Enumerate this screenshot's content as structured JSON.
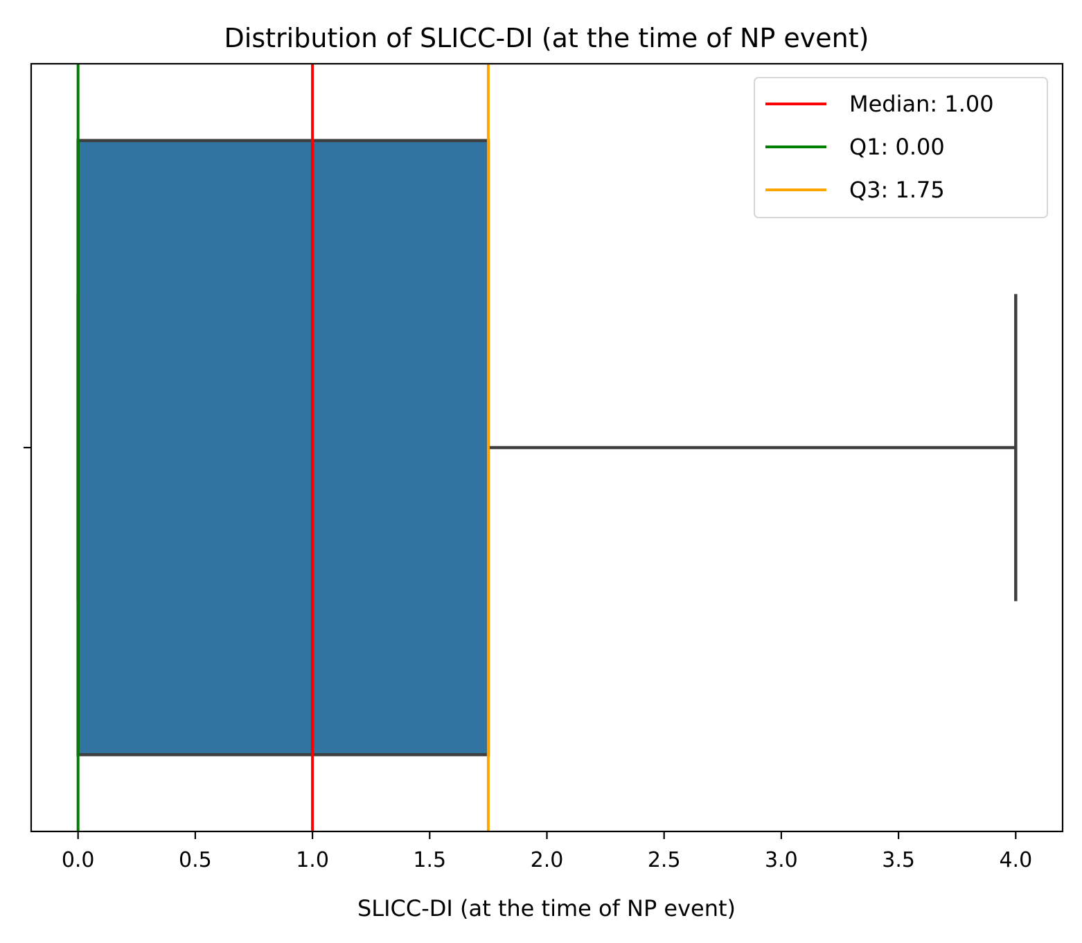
{
  "chart_data": {
    "type": "box",
    "title": "Distribution of SLICC-DI (at the time of NP event)",
    "xlabel": "SLICC-DI (at the time of NP event)",
    "ylabel": "",
    "xlim": [
      -0.2,
      4.2
    ],
    "xticks": [
      0.0,
      0.5,
      1.0,
      1.5,
      2.0,
      2.5,
      3.0,
      3.5,
      4.0
    ],
    "xtick_labels": [
      "0.0",
      "0.5",
      "1.0",
      "1.5",
      "2.0",
      "2.5",
      "3.0",
      "3.5",
      "4.0"
    ],
    "orientation": "horizontal",
    "box": {
      "whisker_low": 0.0,
      "q1": 0.0,
      "median": 1.0,
      "q3": 1.75,
      "whisker_high": 4.0,
      "fill_color": "#3274a1",
      "edge_color": "#3f3f3f"
    },
    "reference_lines": [
      {
        "label": "Median: 1.00",
        "x": 1.0,
        "color": "#ff0000"
      },
      {
        "label": "Q1: 0.00",
        "x": 0.0,
        "color": "#008000"
      },
      {
        "label": "Q3: 1.75",
        "x": 1.75,
        "color": "#ffa500"
      }
    ],
    "legend_position": "top-right",
    "grid": false
  }
}
